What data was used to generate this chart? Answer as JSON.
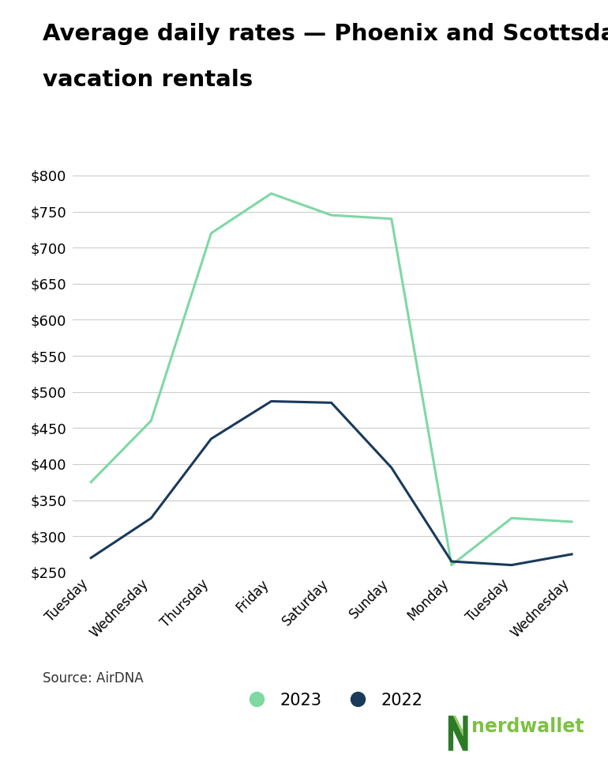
{
  "title_line1": "Average daily rates — Phoenix and Scottsdale",
  "title_line2": "vacation rentals",
  "x_labels": [
    "Tuesday",
    "Wednesday",
    "Thursday",
    "Friday",
    "Saturday",
    "Sunday",
    "Monday",
    "Tuesday",
    "Wednesday"
  ],
  "series_2023": [
    375,
    460,
    720,
    775,
    745,
    740,
    260,
    325,
    320
  ],
  "series_2022": [
    270,
    325,
    435,
    487,
    485,
    395,
    265,
    260,
    275
  ],
  "color_2023": "#7ed8a4",
  "color_2022": "#1a3a5c",
  "ylim": [
    250,
    800
  ],
  "yticks": [
    250,
    300,
    350,
    400,
    450,
    500,
    550,
    600,
    650,
    700,
    750,
    800
  ],
  "source": "Source: AirDNA",
  "legend_labels": [
    "2023",
    "2022"
  ],
  "background_color": "#ffffff",
  "grid_color": "#cccccc",
  "title_fontsize": 21,
  "axis_fontsize": 12,
  "tick_fontsize": 13,
  "source_fontsize": 12,
  "legend_fontsize": 15,
  "nerdwallet_color": "#7dc242",
  "nerdwallet_dark": "#2d7a27"
}
